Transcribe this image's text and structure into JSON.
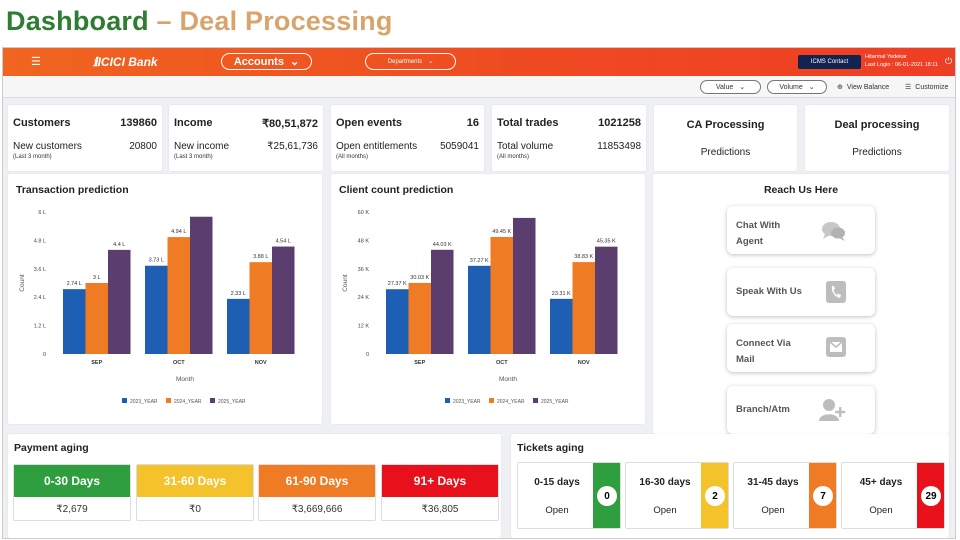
{
  "slide": {
    "title_part1": "Dashboard",
    "title_sep": "–",
    "title_part2": "Deal Processing"
  },
  "topbar": {
    "menu_icon": "hamburger-icon",
    "brand": "ICICI Bank",
    "accounts_label": "Accounts",
    "departments_label": "Departments",
    "contact_label": "ICMS Contact",
    "user_name": "Hitarmal Yedekar",
    "last_login": "Last Login : 06-01-2021 18:11",
    "power_icon": "power-icon"
  },
  "toolbar": {
    "value_label": "Value",
    "volume_label": "Volume",
    "view_balance_label": "View Balance",
    "customize_label": "Customize"
  },
  "stats": [
    {
      "title": "Customers",
      "value": "139860",
      "sub_label": "New customers",
      "sub_value": "20800",
      "note": "(Last 3 month)"
    },
    {
      "title": "Income",
      "value": "₹80,51,872",
      "sub_label": "New income",
      "sub_value": "₹25,61,736",
      "note": "(Last 3 month)"
    },
    {
      "title": "Open events",
      "value": "16",
      "sub_label": "Open entitlements",
      "sub_value": "5059041",
      "note": "(All months)"
    },
    {
      "title": "Total trades",
      "value": "1021258",
      "sub_label": "Total volume",
      "sub_value": "11853498",
      "note": "(All months)"
    }
  ],
  "ca_card": {
    "title": "CA Processing",
    "subtitle": "Predictions"
  },
  "deal_card": {
    "title": "Deal processing",
    "subtitle": "Predictions"
  },
  "chart_data": [
    {
      "type": "bar",
      "title": "Transaction prediction",
      "categories": [
        "SEP",
        "OCT",
        "NOV"
      ],
      "xlabel": "Month",
      "ylabel": "Count",
      "yticks": [
        "0",
        "1.2 L",
        "2.4 L",
        "3.6 L",
        "4.8 L",
        "6 L"
      ],
      "ylim": [
        0,
        6
      ],
      "series": [
        {
          "name": "2023_YEAR",
          "color": "#1f5fb3",
          "values": [
            2.74,
            3.73,
            2.33
          ],
          "labels": [
            "2.74 L",
            "3.73 L",
            "2.33 L"
          ]
        },
        {
          "name": "2024_YEAR",
          "color": "#ef7c24",
          "values": [
            3.0,
            4.94,
            3.88
          ],
          "labels": [
            "3 L",
            "4.94 L",
            "3.88 L"
          ]
        },
        {
          "name": "2025_YEAR",
          "color": "#5b3d6e",
          "values": [
            4.4,
            5.8,
            4.54
          ],
          "labels": [
            "4.4 L",
            "",
            "4.54 L"
          ]
        }
      ],
      "legend": "bottom"
    },
    {
      "type": "bar",
      "title": "Client count prediction",
      "categories": [
        "SEP",
        "OCT",
        "NOV"
      ],
      "xlabel": "Month",
      "ylabel": "Count",
      "yticks": [
        "0",
        "12 K",
        "24 K",
        "36 K",
        "48 K",
        "60 K"
      ],
      "ylim": [
        0,
        60
      ],
      "series": [
        {
          "name": "2023_YEAR",
          "color": "#1f5fb3",
          "values": [
            27.37,
            37.27,
            23.31
          ],
          "labels": [
            "27.37 K",
            "37.27 K",
            "23.31 K"
          ]
        },
        {
          "name": "2024_YEAR",
          "color": "#ef7c24",
          "values": [
            30.03,
            49.45,
            38.83
          ],
          "labels": [
            "30.03 K",
            "49.45 K",
            "38.83 K"
          ]
        },
        {
          "name": "2025_YEAR",
          "color": "#5b3d6e",
          "values": [
            44.03,
            57.5,
            45.35
          ],
          "labels": [
            "44.03 K",
            "",
            "45.35 K"
          ]
        }
      ],
      "legend": "bottom"
    }
  ],
  "reach": {
    "title": "Reach Us Here",
    "buttons": [
      {
        "label": "Chat With Agent",
        "icon": "chat-icon"
      },
      {
        "label": "Speak With Us",
        "icon": "phone-icon"
      },
      {
        "label": "Connect Via Mail",
        "icon": "mail-icon"
      },
      {
        "label": "Branch/Atm",
        "icon": "add-person-icon"
      }
    ]
  },
  "payment_aging": {
    "title": "Payment aging",
    "items": [
      {
        "range": "0-30 Days",
        "amount": "₹2,679",
        "color": "#2e9e3e"
      },
      {
        "range": "31-60 Days",
        "amount": "₹0",
        "color": "#f4c22b"
      },
      {
        "range": "61-90 Days",
        "amount": "₹3,669,666",
        "color": "#ef7c24"
      },
      {
        "range": "91+ Days",
        "amount": "₹36,805",
        "color": "#e8101a"
      }
    ]
  },
  "tickets_aging": {
    "title": "Tickets aging",
    "items": [
      {
        "range": "0-15 days",
        "status": "Open",
        "count": "0",
        "color": "#2e9e3e"
      },
      {
        "range": "16-30 days",
        "status": "Open",
        "count": "2",
        "color": "#f4c22b"
      },
      {
        "range": "31-45 days",
        "status": "Open",
        "count": "7",
        "color": "#ef7c24"
      },
      {
        "range": "45+ days",
        "status": "Open",
        "count": "29",
        "color": "#e8101a"
      }
    ]
  }
}
